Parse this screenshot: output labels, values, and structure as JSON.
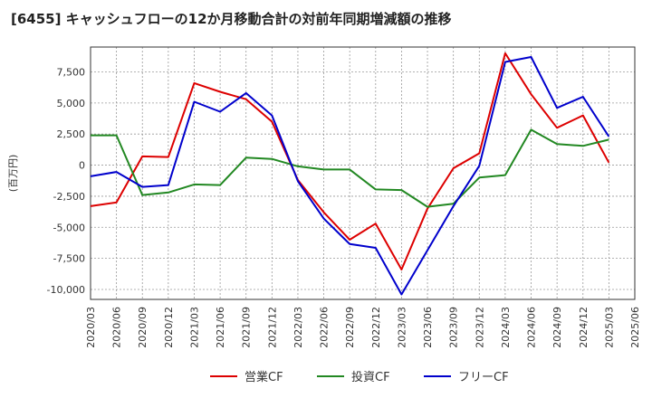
{
  "chart_data": {
    "type": "line",
    "title": "[6455]  キャッシュフローの12か月移動合計の対前年同期増減額の推移",
    "xlabel": "",
    "ylabel": "(百万円)",
    "ylim": [
      -10800,
      9500
    ],
    "yticks": [
      7500,
      5000,
      2500,
      0,
      -2500,
      -5000,
      -7500,
      -10000
    ],
    "ytick_labels": [
      "7,500",
      "5,000",
      "2,500",
      "0",
      "-2,500",
      "-5,000",
      "-7,500",
      "-10,000"
    ],
    "x": [
      "2020/03",
      "2020/06",
      "2020/09",
      "2020/12",
      "2021/03",
      "2021/06",
      "2021/09",
      "2021/12",
      "2022/03",
      "2022/06",
      "2022/09",
      "2022/12",
      "2023/03",
      "2023/06",
      "2023/09",
      "2023/12",
      "2024/03",
      "2024/06",
      "2024/09",
      "2024/12",
      "2025/03",
      "2025/06"
    ],
    "grid": true,
    "legend_position": "bottom",
    "series": [
      {
        "name": "営業CF",
        "color": "#dd0000",
        "values": [
          -3300,
          -3000,
          700,
          650,
          6600,
          5900,
          5300,
          3500,
          -1200,
          -3800,
          -6000,
          -4700,
          -8400,
          -3500,
          -250,
          950,
          9000,
          5700,
          3000,
          4000,
          200,
          null
        ]
      },
      {
        "name": "投資CF",
        "color": "#228822",
        "values": [
          2400,
          2400,
          -2400,
          -2200,
          -1550,
          -1600,
          600,
          500,
          -100,
          -350,
          -350,
          -1950,
          -2000,
          -3350,
          -3100,
          -1000,
          -800,
          2850,
          1700,
          1550,
          2050,
          null
        ]
      },
      {
        "name": "フリーCF",
        "color": "#0000cc",
        "values": [
          -900,
          -550,
          -1750,
          -1600,
          5100,
          4300,
          5800,
          4000,
          -1300,
          -4300,
          -6350,
          -6650,
          -10400,
          -6850,
          -3300,
          -50,
          8300,
          8700,
          4600,
          5500,
          2300,
          null
        ]
      }
    ]
  }
}
